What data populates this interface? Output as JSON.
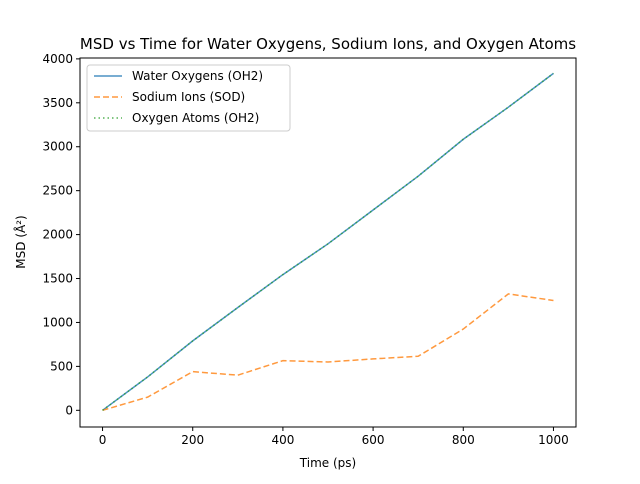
{
  "chart_data": {
    "type": "line",
    "title": "MSD vs Time for Water Oxygens, Sodium Ions, and Oxygen Atoms",
    "xlabel": "Time (ps)",
    "ylabel": "MSD (Å²)",
    "xlim": [
      -50,
      1050
    ],
    "ylim": [
      -190,
      4010
    ],
    "xticks": [
      0,
      200,
      400,
      600,
      800,
      1000
    ],
    "yticks": [
      0,
      500,
      1000,
      1500,
      2000,
      2500,
      3000,
      3500,
      4000
    ],
    "grid": false,
    "legend": "top-left",
    "x": [
      0,
      100,
      200,
      300,
      400,
      500,
      600,
      700,
      800,
      900,
      1000
    ],
    "series": [
      {
        "name": "Water Oxygens (OH2)",
        "color": "#1f77b4",
        "style": "solid",
        "values": [
          0,
          380,
          790,
          1170,
          1545,
          1895,
          2280,
          2665,
          3085,
          3450,
          3835
        ]
      },
      {
        "name": "Sodium Ions (SOD)",
        "color": "#ff7f0e",
        "style": "dashed",
        "values": [
          0,
          150,
          440,
          400,
          565,
          550,
          585,
          615,
          925,
          1325,
          1250
        ]
      },
      {
        "name": "Oxygen Atoms (OH2)",
        "color": "#2ca02c",
        "style": "dotted",
        "values": [
          0,
          380,
          790,
          1170,
          1545,
          1895,
          2280,
          2665,
          3085,
          3450,
          3835
        ]
      }
    ]
  }
}
